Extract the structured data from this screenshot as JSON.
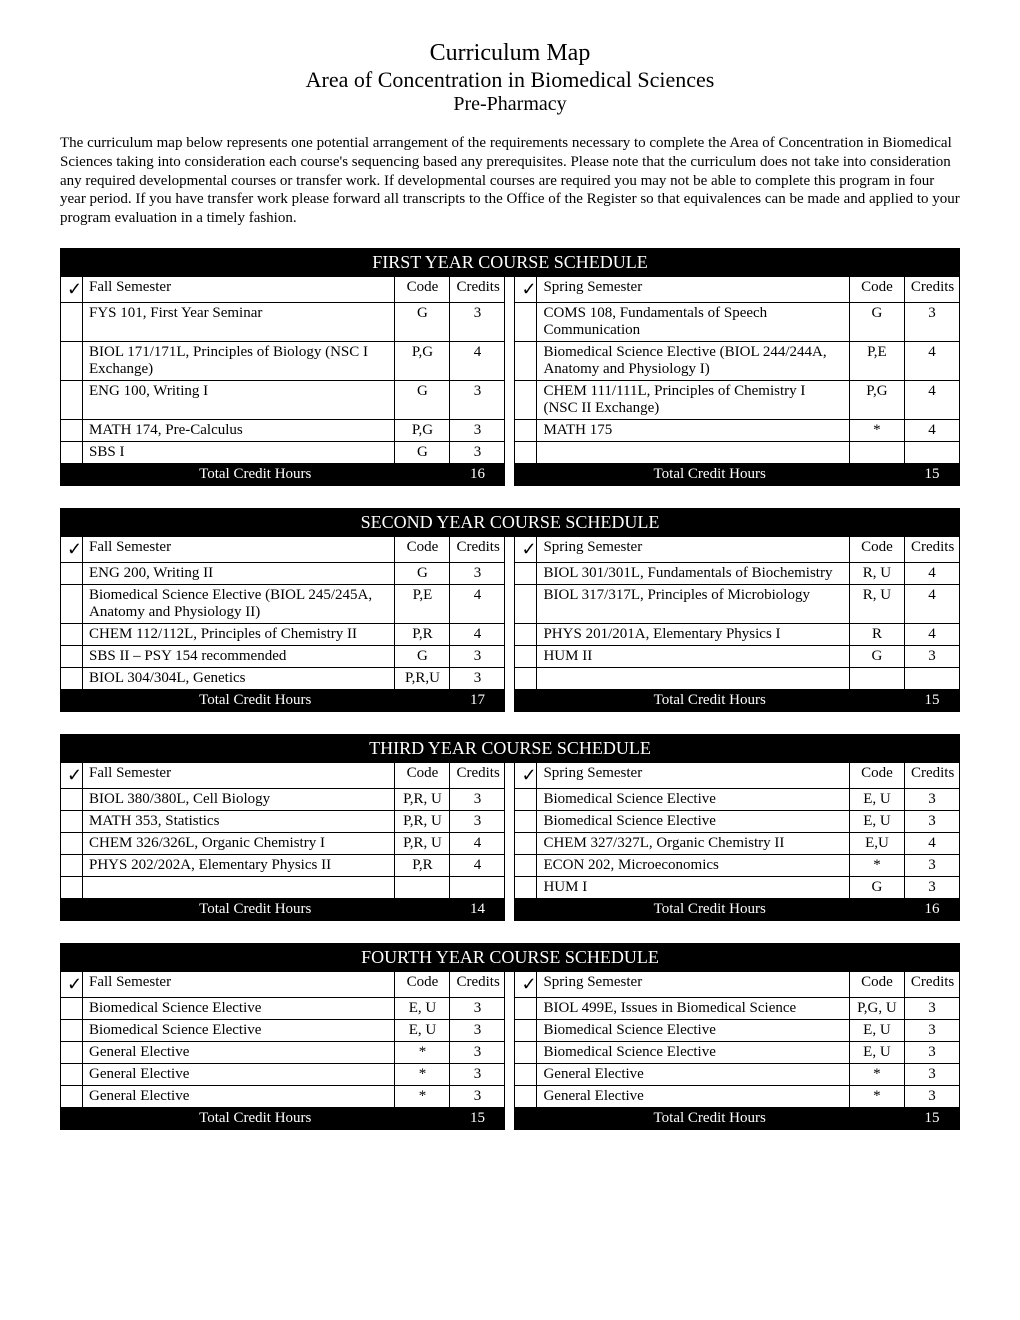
{
  "title1": "Curriculum Map",
  "title2": "Area of Concentration in Biomedical Sciences",
  "title3": "Pre-Pharmacy",
  "intro": "The curriculum map below represents one potential arrangement of the requirements necessary to complete the Area of Concentration in Biomedical Sciences taking into consideration each course's sequencing based any prerequisites. Please note that the curriculum does not take into consideration any required developmental courses or transfer work. If developmental courses are required you may not be able to complete this program in four year period.  If you have transfer work please forward all transcripts to the Office of the Register so that equivalences can be made and applied to your program evaluation in a timely fashion.",
  "headers": {
    "fall": "Fall Semester",
    "spring": "Spring Semester",
    "code": "Code",
    "credits": "Credits",
    "total": "Total Credit Hours"
  },
  "check_glyph": "✓",
  "years": [
    {
      "banner": "FIRST YEAR COURSE SCHEDULE",
      "fall": {
        "rows": [
          {
            "course": "FYS 101, First Year Seminar",
            "code": "G",
            "credits": "3"
          },
          {
            "course": "BIOL 171/171L, Principles of Biology (NSC I Exchange)",
            "code": "P,G",
            "credits": "4"
          },
          {
            "course": "ENG 100, Writing I",
            "code": "G",
            "credits": "3"
          },
          {
            "course": "MATH 174, Pre-Calculus",
            "code": "P,G",
            "credits": "3"
          },
          {
            "course": "SBS I",
            "code": "G",
            "credits": "3"
          }
        ],
        "total": "16"
      },
      "spring": {
        "rows": [
          {
            "course": "COMS 108, Fundamentals of Speech Communication",
            "code": "G",
            "credits": "3"
          },
          {
            "course": "Biomedical Science Elective (BIOL 244/244A, Anatomy and Physiology I)",
            "code": "P,E",
            "credits": "4"
          },
          {
            "course": "CHEM 111/111L, Principles of Chemistry I (NSC II Exchange)",
            "code": "P,G",
            "credits": "4"
          },
          {
            "course": "MATH 175",
            "code": "*",
            "credits": "4"
          },
          {
            "course": "",
            "code": "",
            "credits": ""
          }
        ],
        "total": "15"
      }
    },
    {
      "banner": "SECOND YEAR COURSE SCHEDULE",
      "fall": {
        "rows": [
          {
            "course": "ENG 200, Writing II",
            "code": "G",
            "credits": "3"
          },
          {
            "course": "Biomedical Science Elective (BIOL 245/245A, Anatomy and Physiology II)",
            "code": "P,E",
            "credits": "4"
          },
          {
            "course": "CHEM 112/112L, Principles of Chemistry II",
            "code": "P,R",
            "credits": "4"
          },
          {
            "course": "SBS II – PSY 154 recommended",
            "code": "G",
            "credits": "3"
          },
          {
            "course": "BIOL 304/304L, Genetics",
            "code": "P,R,U",
            "credits": "3"
          }
        ],
        "total": "17"
      },
      "spring": {
        "rows": [
          {
            "course": "BIOL 301/301L, Fundamentals of Biochemistry",
            "code": "R, U",
            "credits": "4"
          },
          {
            "course": "BIOL 317/317L, Principles of Microbiology",
            "code": "R, U",
            "credits": "4"
          },
          {
            "course": "PHYS 201/201A, Elementary Physics I",
            "code": "R",
            "credits": "4"
          },
          {
            "course": "HUM II",
            "code": "G",
            "credits": "3"
          },
          {
            "course": "",
            "code": "",
            "credits": ""
          }
        ],
        "total": "15"
      }
    },
    {
      "banner": "THIRD YEAR COURSE SCHEDULE",
      "fall": {
        "rows": [
          {
            "course": "BIOL 380/380L, Cell Biology",
            "code": "P,R, U",
            "credits": "3"
          },
          {
            "course": "MATH 353, Statistics",
            "code": "P,R, U",
            "credits": "3"
          },
          {
            "course": "CHEM 326/326L, Organic Chemistry I",
            "code": "P,R, U",
            "credits": "4"
          },
          {
            "course": "PHYS 202/202A, Elementary Physics II",
            "code": "P,R",
            "credits": "4"
          },
          {
            "course": "",
            "code": "",
            "credits": ""
          }
        ],
        "total": "14"
      },
      "spring": {
        "rows": [
          {
            "course": "Biomedical Science Elective",
            "code": "E, U",
            "credits": "3"
          },
          {
            "course": "Biomedical Science Elective",
            "code": "E, U",
            "credits": "3"
          },
          {
            "course": "CHEM 327/327L, Organic Chemistry II",
            "code": "E,U",
            "credits": "4"
          },
          {
            "course": "ECON 202, Microeconomics",
            "code": "*",
            "credits": "3"
          },
          {
            "course": "HUM I",
            "code": "G",
            "credits": "3"
          }
        ],
        "total": "16"
      }
    },
    {
      "banner": "FOURTH YEAR COURSE SCHEDULE",
      "fall": {
        "rows": [
          {
            "course": "Biomedical Science Elective",
            "code": "E, U",
            "credits": "3"
          },
          {
            "course": "Biomedical Science Elective",
            "code": "E, U",
            "credits": "3"
          },
          {
            "course": "General Elective",
            "code": "*",
            "credits": "3"
          },
          {
            "course": "General Elective",
            "code": "*",
            "credits": "3"
          },
          {
            "course": "General Elective",
            "code": "*",
            "credits": "3"
          }
        ],
        "total": "15"
      },
      "spring": {
        "rows": [
          {
            "course": "BIOL 499E, Issues in Biomedical Science",
            "code": "P,G, U",
            "credits": "3"
          },
          {
            "course": "Biomedical Science Elective",
            "code": "E, U",
            "credits": "3"
          },
          {
            "course": "Biomedical Science Elective",
            "code": "E, U",
            "credits": "3"
          },
          {
            "course": "General Elective",
            "code": "*",
            "credits": "3"
          },
          {
            "course": "General Elective",
            "code": "*",
            "credits": "3"
          }
        ],
        "total": "15"
      }
    }
  ]
}
